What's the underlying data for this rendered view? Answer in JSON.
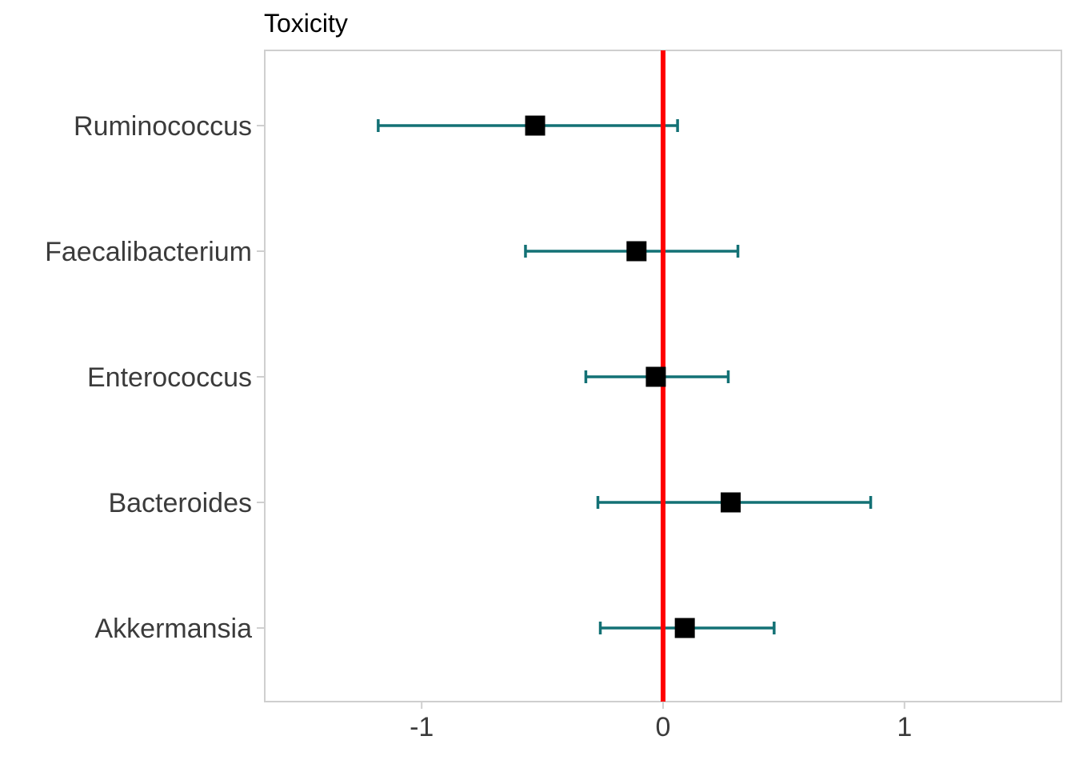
{
  "chart_data": {
    "type": "forest",
    "title": "Toxicity",
    "xlabel": "",
    "ylabel": "",
    "xlim": [
      -1.65,
      1.65
    ],
    "x_ticks": [
      -1,
      0,
      1
    ],
    "x_tick_labels": [
      "-1",
      "0",
      "1"
    ],
    "grid": false,
    "reference_line": {
      "x": 0,
      "color": "#ff0000"
    },
    "colors": {
      "point": "#000000",
      "error_bar": "#137175"
    },
    "categories": [
      "Ruminococcus",
      "Faecalibacterium",
      "Enterococcus",
      "Bacteroides",
      "Akkermansia"
    ],
    "estimates": [
      -0.53,
      -0.11,
      -0.03,
      0.28,
      0.09
    ],
    "lower": [
      -1.18,
      -0.57,
      -0.32,
      -0.27,
      -0.26
    ],
    "upper": [
      0.06,
      0.31,
      0.27,
      0.86,
      0.46
    ]
  }
}
